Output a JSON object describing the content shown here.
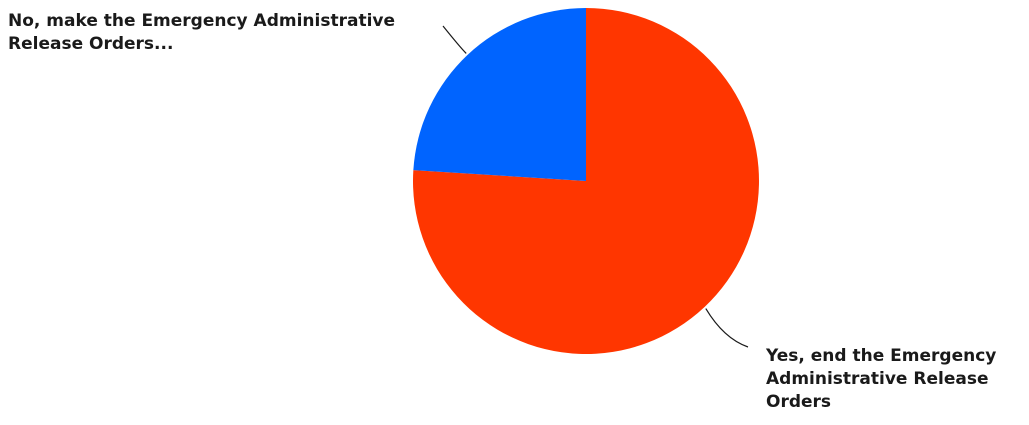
{
  "chart_data": {
    "type": "pie",
    "slices": [
      {
        "label": "Yes, end the Emergency Administrative Release Orders",
        "value": 76,
        "color": "#ff3600"
      },
      {
        "label": "No, make the Emergency Administrative Release Orders...",
        "value": 24,
        "color": "#0064ff"
      }
    ],
    "start_angle_deg": 0,
    "direction": "clockwise",
    "legend": "none"
  }
}
